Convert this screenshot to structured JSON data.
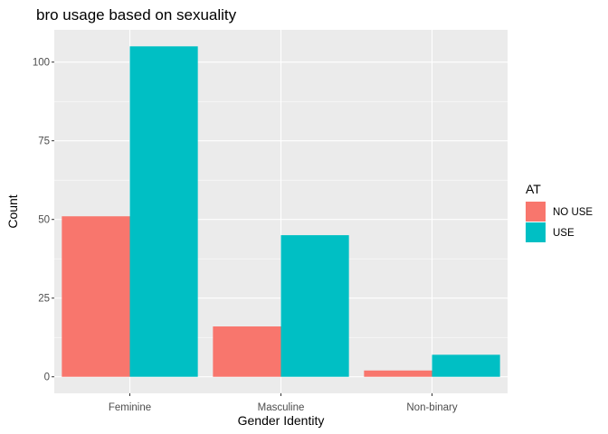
{
  "chart_data": {
    "type": "bar",
    "title": "bro usage based on sexuality",
    "xlabel": "Gender Identity",
    "ylabel": "Count",
    "categories": [
      "Feminine",
      "Masculine",
      "Non-binary"
    ],
    "series": [
      {
        "name": "NO USE",
        "values": [
          51,
          16,
          2
        ],
        "color": "#F8766D"
      },
      {
        "name": "USE",
        "values": [
          105,
          45,
          7
        ],
        "color": "#00BFC4"
      }
    ],
    "ylim": [
      -5.25,
      110.25
    ],
    "yticks": [
      0,
      25,
      50,
      75,
      100
    ],
    "grid": true,
    "legend": {
      "title": "AT",
      "position": "right"
    },
    "panel_background": "#EBEBEB"
  }
}
